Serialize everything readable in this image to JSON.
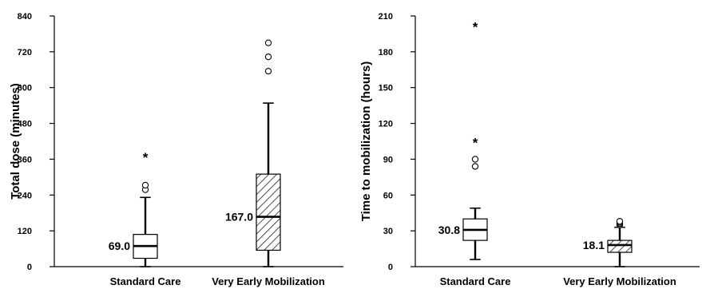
{
  "chart_data": [
    {
      "type": "box",
      "ylabel": "Total dose (minutes)",
      "ylim": [
        0,
        840
      ],
      "yticks": [
        0,
        120,
        240,
        360,
        480,
        600,
        720,
        840
      ],
      "grid": false,
      "categories": [
        "Standard Care",
        "Very Early Mobilization"
      ],
      "boxes": [
        {
          "category": "Standard Care",
          "fill": "plain",
          "min": 0,
          "q1": 28,
          "median": 69,
          "q3": 108,
          "max": 232,
          "median_label": "69.0",
          "outliers_circle": [
            258,
            273
          ],
          "outliers_star": [
            375
          ]
        },
        {
          "category": "Very Early Mobilization",
          "fill": "hatched",
          "min": 0,
          "q1": 55,
          "median": 167,
          "q3": 310,
          "max": 548,
          "median_label": "167.0",
          "outliers_circle": [
            655,
            703,
            750
          ],
          "outliers_star": []
        }
      ]
    },
    {
      "type": "box",
      "ylabel": "Time to mobilization (hours)",
      "ylim": [
        0,
        210
      ],
      "yticks": [
        0,
        30,
        60,
        90,
        120,
        150,
        180,
        210
      ],
      "grid": false,
      "categories": [
        "Standard Care",
        "Very Early Mobilization"
      ],
      "boxes": [
        {
          "category": "Standard Care",
          "fill": "plain",
          "min": 6,
          "q1": 22,
          "median": 30.8,
          "q3": 40,
          "max": 49,
          "median_label": "30.8",
          "outliers_circle": [
            84,
            90
          ],
          "outliers_star": [
            106,
            203
          ]
        },
        {
          "category": "Very Early Mobilization",
          "fill": "hatched",
          "min": 0,
          "q1": 12,
          "median": 18.1,
          "q3": 22,
          "max": 33,
          "median_label": "18.1",
          "outliers_circle": [
            35,
            36,
            37,
            38
          ],
          "outliers_star": []
        }
      ]
    }
  ]
}
